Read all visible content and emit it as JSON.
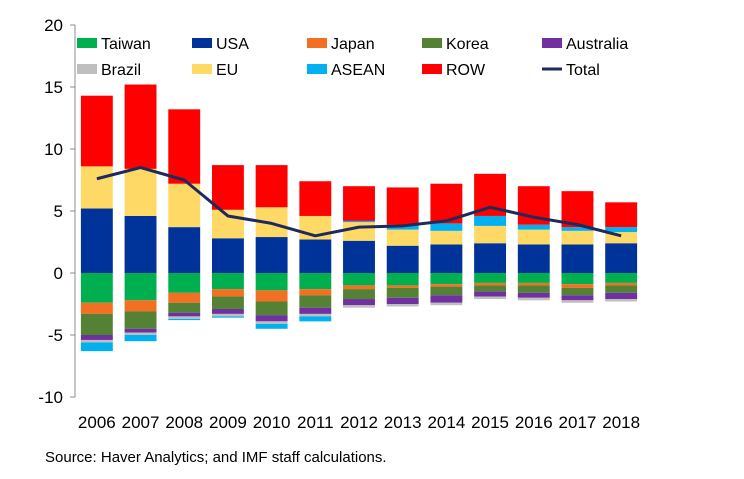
{
  "chart_data": {
    "type": "bar",
    "stacked": true,
    "categories": [
      "2006",
      "2007",
      "2008",
      "2009",
      "2010",
      "2011",
      "2012",
      "2013",
      "2014",
      "2015",
      "2016",
      "2017",
      "2018"
    ],
    "ylim": [
      -10,
      20
    ],
    "yticks": [
      -10,
      -5,
      0,
      5,
      10,
      15,
      20
    ],
    "ytick_labels": [
      "-10",
      "-5",
      "0",
      "5",
      "10",
      "15",
      "20"
    ],
    "grid": false,
    "legend_position": "top",
    "series": [
      {
        "name": "Taiwan",
        "color": "#00B050",
        "values": [
          -2.4,
          -2.2,
          -1.6,
          -1.3,
          -1.4,
          -1.3,
          -1.0,
          -1.0,
          -0.9,
          -0.8,
          -0.8,
          -0.9,
          -0.8
        ]
      },
      {
        "name": "USA",
        "color": "#003399",
        "values": [
          5.2,
          4.6,
          3.7,
          2.8,
          2.9,
          2.7,
          2.6,
          2.2,
          2.3,
          2.4,
          2.3,
          2.3,
          2.4
        ]
      },
      {
        "name": "Japan",
        "color": "#F36F21",
        "values": [
          -0.9,
          -0.9,
          -0.8,
          -0.6,
          -0.9,
          -0.5,
          -0.3,
          -0.2,
          -0.2,
          -0.2,
          -0.2,
          -0.3,
          -0.2
        ]
      },
      {
        "name": "Korea",
        "color": "#548235",
        "values": [
          -1.7,
          -1.4,
          -0.8,
          -1.0,
          -1.1,
          -1.0,
          -0.8,
          -0.8,
          -0.7,
          -0.5,
          -0.6,
          -0.6,
          -0.6
        ]
      },
      {
        "name": "Australia",
        "color": "#7030A0",
        "values": [
          -0.4,
          -0.3,
          -0.3,
          -0.4,
          -0.5,
          -0.5,
          -0.5,
          -0.5,
          -0.6,
          -0.4,
          -0.4,
          -0.4,
          -0.5
        ]
      },
      {
        "name": "Brazil",
        "color": "#BFBFBF",
        "values": [
          -0.2,
          -0.2,
          -0.2,
          -0.2,
          -0.2,
          -0.2,
          -0.2,
          -0.2,
          -0.2,
          -0.2,
          -0.2,
          -0.2,
          -0.2
        ]
      },
      {
        "name": "EU",
        "color": "#FFD966",
        "values": [
          3.4,
          3.8,
          3.5,
          2.3,
          2.4,
          1.9,
          1.5,
          1.3,
          1.1,
          1.4,
          1.2,
          1.1,
          0.9
        ]
      },
      {
        "name": "ASEAN",
        "color": "#00B0F0",
        "values": [
          -0.7,
          -0.5,
          -0.1,
          -0.1,
          -0.4,
          -0.4,
          0.1,
          0.4,
          0.6,
          0.8,
          0.4,
          0.3,
          0.4
        ]
      },
      {
        "name": "ROW",
        "color": "#FF0000",
        "values": [
          5.7,
          6.8,
          6.0,
          3.6,
          3.4,
          2.8,
          2.8,
          3.0,
          3.2,
          3.4,
          3.1,
          2.9,
          2.0
        ]
      }
    ],
    "total": {
      "name": "Total",
      "color": "#1F2A5C",
      "values": [
        7.6,
        8.5,
        7.5,
        4.6,
        4.0,
        3.0,
        3.7,
        3.8,
        4.2,
        5.3,
        4.5,
        3.9,
        3.0
      ]
    },
    "legend_order": [
      "Taiwan",
      "USA",
      "Japan",
      "Korea",
      "Australia",
      "Brazil",
      "EU",
      "ASEAN",
      "ROW",
      "Total"
    ]
  },
  "source_note": "Source: Haver Analytics; and IMF staff calculations."
}
